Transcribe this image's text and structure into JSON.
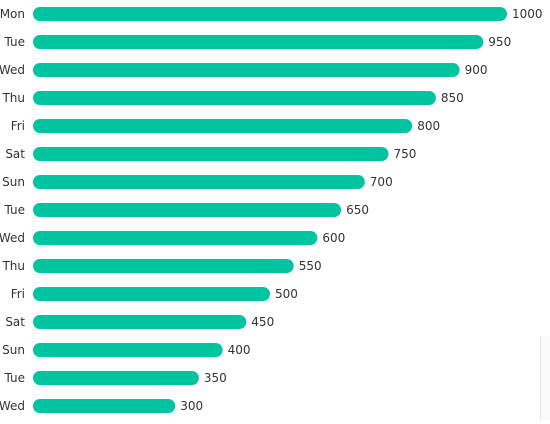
{
  "chart_data": {
    "type": "bar",
    "orientation": "horizontal",
    "categories": [
      "Mon",
      "Tue",
      "Wed",
      "Thu",
      "Fri",
      "Sat",
      "Sun",
      "Tue",
      "Wed",
      "Thu",
      "Fri",
      "Sat",
      "Sun",
      "Tue",
      "Wed"
    ],
    "values": [
      1000,
      950,
      900,
      850,
      800,
      750,
      700,
      650,
      600,
      550,
      500,
      450,
      400,
      350,
      300
    ],
    "title": "",
    "xlabel": "",
    "ylabel": "",
    "xlim": [
      0,
      1000
    ],
    "grid": false,
    "data_labels": true,
    "bar_color": "#00C4A0",
    "label_color": "#333333"
  }
}
